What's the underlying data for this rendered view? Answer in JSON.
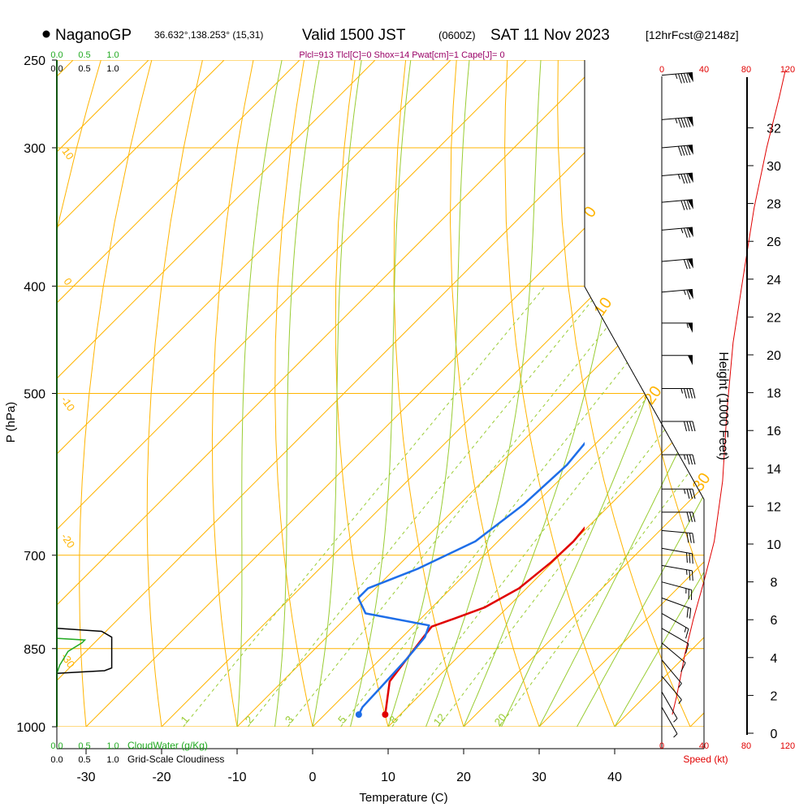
{
  "header": {
    "station": "NaganoGP",
    "coords": "36.632°,138.253° (15,31)",
    "valid": "Valid 1500 JST",
    "zulu": "(0600Z)",
    "date": "SAT 11 Nov 2023",
    "forecast": "[12hrFcst@2148z]"
  },
  "params_line": "Plcl=913 Tlcl[C]=0 Shox=14 Pwat[cm]=1 Cape[J]= 0",
  "chart_data": {
    "type": "line",
    "title": "NaganoGP Valid 1500 JST (0600Z) SAT 11 Nov 2023",
    "xlabel": "Temperature (C)",
    "ylabel": "P (hPa)",
    "right_ylabel": "Height (1000 Feet)",
    "x_ticks": [
      -30,
      -20,
      -10,
      0,
      10,
      20,
      30,
      40
    ],
    "p_ticks": [
      250,
      300,
      400,
      500,
      700,
      850,
      1000
    ],
    "height_ticks": [
      0,
      2,
      4,
      6,
      8,
      10,
      12,
      14,
      16,
      18,
      20,
      22,
      24,
      26,
      28,
      30,
      32
    ],
    "xlim": [
      -34,
      36
    ],
    "plim": [
      1000,
      250
    ],
    "isotherm_labels": [
      {
        "label": "10",
        "at": -33,
        "p": 305
      },
      {
        "label": "0",
        "at": -33,
        "p": 398
      },
      {
        "label": "-10",
        "at": -33,
        "p": 513
      },
      {
        "label": "-20",
        "at": -33,
        "p": 682
      },
      {
        "label": "-30",
        "at": -33,
        "p": 875
      }
    ],
    "side_labels": [
      {
        "label": "0",
        "p": 345
      },
      {
        "label": "10",
        "p": 420
      },
      {
        "label": "20",
        "p": 505
      },
      {
        "label": "30",
        "p": 605
      }
    ],
    "mixing_ratio_labels": [
      "1",
      "2",
      "3",
      "5",
      "8",
      "12",
      "20"
    ],
    "series": [
      {
        "name": "Temperature",
        "color": "#e00000",
        "points": [
          [
            8,
            975
          ],
          [
            4.2,
            910
          ],
          [
            2.8,
            830
          ],
          [
            2.5,
            812
          ],
          [
            4.5,
            798
          ],
          [
            7,
            780
          ],
          [
            9,
            750
          ],
          [
            9.8,
            710
          ],
          [
            10,
            680
          ],
          [
            9.5,
            650
          ],
          [
            7.5,
            590
          ],
          [
            5.5,
            550
          ],
          [
            4,
            510
          ],
          [
            2.5,
            470
          ],
          [
            1,
            425
          ],
          [
            -0.5,
            385
          ],
          [
            -0.8,
            350
          ],
          [
            -0.8,
            320
          ],
          [
            -0.6,
            300
          ],
          [
            -0.5,
            270
          ],
          [
            -0.3,
            260
          ]
        ]
      },
      {
        "name": "Dew Point",
        "color": "#1e6ee8",
        "points": [
          [
            4.5,
            975
          ],
          [
            4,
            960
          ],
          [
            3.8,
            920
          ],
          [
            3.5,
            870
          ],
          [
            3,
            830
          ],
          [
            2,
            810
          ],
          [
            -8,
            790
          ],
          [
            -11,
            765
          ],
          [
            -11,
            750
          ],
          [
            -7,
            720
          ],
          [
            -3,
            680
          ],
          [
            -1.5,
            630
          ],
          [
            -1,
            580
          ],
          [
            -2,
            530
          ],
          [
            -7,
            490
          ],
          [
            -17,
            420
          ],
          [
            -17,
            390
          ],
          [
            -11,
            355
          ],
          [
            -9,
            340
          ],
          [
            -5,
            308
          ],
          [
            -3,
            292
          ],
          [
            -5,
            275
          ],
          [
            -9,
            258
          ]
        ]
      }
    ],
    "grid": true,
    "legend": "none"
  },
  "top_scales": {
    "cloud_water": [
      "0.0",
      "0.5",
      "1.0"
    ],
    "cloudiness": [
      "0.0",
      "0.5",
      "1.0"
    ]
  },
  "bottom_scales": {
    "cloud_water": [
      "0.0",
      "0.5",
      "1.0"
    ],
    "cloud_water_label": "CloudWater (g/Kg)",
    "cloudiness": [
      "0.0",
      "0.5",
      "1.0"
    ],
    "cloudiness_label": "Grid-Scale Cloudiness"
  },
  "speed_scale": {
    "ticks": [
      "0",
      "40",
      "80",
      "120"
    ],
    "label": "Speed (kt)"
  },
  "wind_barbs": [
    {
      "p": 258,
      "dir": 265,
      "spd": 95
    },
    {
      "p": 283,
      "dir": 265,
      "spd": 95
    },
    {
      "p": 300,
      "dir": 265,
      "spd": 90
    },
    {
      "p": 318,
      "dir": 265,
      "spd": 85
    },
    {
      "p": 336,
      "dir": 265,
      "spd": 80
    },
    {
      "p": 356,
      "dir": 265,
      "spd": 75
    },
    {
      "p": 380,
      "dir": 265,
      "spd": 70
    },
    {
      "p": 405,
      "dir": 265,
      "spd": 65
    },
    {
      "p": 432,
      "dir": 270,
      "spd": 55
    },
    {
      "p": 462,
      "dir": 270,
      "spd": 50
    },
    {
      "p": 495,
      "dir": 270,
      "spd": 45
    },
    {
      "p": 530,
      "dir": 270,
      "spd": 40
    },
    {
      "p": 568,
      "dir": 270,
      "spd": 35
    },
    {
      "p": 610,
      "dir": 270,
      "spd": 35
    },
    {
      "p": 640,
      "dir": 270,
      "spd": 30
    },
    {
      "p": 665,
      "dir": 275,
      "spd": 30
    },
    {
      "p": 690,
      "dir": 280,
      "spd": 30
    },
    {
      "p": 715,
      "dir": 280,
      "spd": 25
    },
    {
      "p": 740,
      "dir": 285,
      "spd": 25
    },
    {
      "p": 765,
      "dir": 290,
      "spd": 20
    },
    {
      "p": 790,
      "dir": 300,
      "spd": 15
    },
    {
      "p": 815,
      "dir": 300,
      "spd": 10
    },
    {
      "p": 840,
      "dir": 310,
      "spd": 10
    },
    {
      "p": 870,
      "dir": 320,
      "spd": 5
    },
    {
      "p": 900,
      "dir": 320,
      "spd": 5
    },
    {
      "p": 930,
      "dir": 330,
      "spd": 5
    },
    {
      "p": 960,
      "dir": 330,
      "spd": 5
    }
  ],
  "wind_speed_profile": [
    [
      10,
      975
    ],
    [
      14,
      940
    ],
    [
      18,
      900
    ],
    [
      22,
      860
    ],
    [
      30,
      800
    ],
    [
      40,
      740
    ],
    [
      50,
      680
    ],
    [
      58,
      600
    ],
    [
      62,
      520
    ],
    [
      68,
      450
    ],
    [
      78,
      390
    ],
    [
      88,
      340
    ],
    [
      100,
      300
    ],
    [
      112,
      270
    ],
    [
      118,
      255
    ]
  ],
  "cloudiness_profile": [
    [
      0.0,
      815
    ],
    [
      0.8,
      820
    ],
    [
      0.98,
      830
    ],
    [
      0.98,
      885
    ],
    [
      0.85,
      890
    ],
    [
      0.0,
      895
    ]
  ],
  "cloudwater_profile": [
    [
      0.0,
      832
    ],
    [
      0.5,
      835
    ],
    [
      0.45,
      840
    ],
    [
      0.2,
      855
    ],
    [
      0.05,
      880
    ],
    [
      0.0,
      895
    ]
  ],
  "colors": {
    "isotherm": "#ffb400",
    "dry_adiabat": "#ffb400",
    "moist_adiabat": "#99cc33",
    "mixing_ratio": "#99cc33",
    "temperature": "#e00000",
    "dewpoint": "#1e6ee8",
    "cloud_water": "#22aa22",
    "params": "#990066",
    "speed": "#e00000"
  }
}
